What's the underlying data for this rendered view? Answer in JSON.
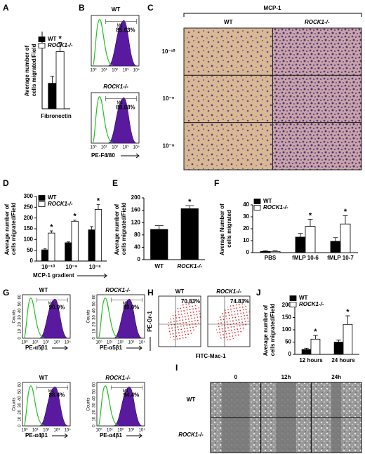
{
  "chart_data": [
    {
      "type": "bar",
      "ylabel": "Average number of cells migrated/Field",
      "categories": [
        "Fibronectin"
      ],
      "legend": true,
      "series": [
        {
          "name": "WT",
          "color": "#000000",
          "values": [
            33
          ],
          "errors": [
            9
          ],
          "annotations": [
            null
          ]
        },
        {
          "name": "ROCK1-/-",
          "color": "#ffffff",
          "values": [
            74
          ],
          "errors": [
            12
          ],
          "annotations": [
            "*"
          ]
        }
      ],
      "ylim": [
        0,
        100
      ]
    },
    {
      "type": "bar",
      "ylabel": "Average number of cells migrated/Field",
      "xlabel": "MCP-1 gradient",
      "categories": [
        "10⁻¹⁰",
        "10⁻⁹",
        "10⁻⁸"
      ],
      "legend": true,
      "series": [
        {
          "name": "WT",
          "color": "#000000",
          "values": [
            52,
            85,
            145
          ],
          "errors": [
            5,
            4,
            15
          ],
          "annotations": [
            null,
            null,
            null
          ]
        },
        {
          "name": "ROCK1-/-",
          "color": "#ffffff",
          "values": [
            130,
            185,
            240
          ],
          "errors": [
            10,
            5,
            22
          ],
          "annotations": [
            "*",
            "*",
            "*"
          ]
        }
      ],
      "ylim": [
        0,
        300
      ],
      "yticks": [
        0,
        50,
        100,
        150,
        200,
        250,
        300
      ]
    },
    {
      "type": "bar",
      "ylabel": "Average number of cells migrated/Field",
      "categories": [
        "WT",
        "ROCK1-/-"
      ],
      "legend": false,
      "series": [
        {
          "color": "#000000",
          "values": [
            98,
            165
          ],
          "errors": [
            12,
            10
          ],
          "annotations": [
            null,
            "*"
          ]
        }
      ],
      "ylim": [
        0,
        200
      ],
      "yticks": [
        0,
        40,
        80,
        120,
        160,
        200
      ]
    },
    {
      "type": "bar",
      "ylabel": "Average Number of cells migrated",
      "categories": [
        "PBS",
        "fMLP 10-6",
        "fMLP 10-7"
      ],
      "legend": true,
      "series": [
        {
          "name": "WT",
          "color": "#000000",
          "values": [
            1,
            13,
            9.5
          ],
          "errors": [
            0.5,
            3,
            3
          ],
          "annotations": [
            null,
            null,
            null
          ]
        },
        {
          "name": "ROCK1-/-",
          "color": "#ffffff",
          "values": [
            1,
            22,
            24
          ],
          "errors": [
            0.5,
            6,
            7
          ],
          "annotations": [
            null,
            "*",
            "*"
          ]
        }
      ],
      "ylim": [
        0,
        40
      ],
      "yticks": [
        0,
        10,
        20,
        30,
        40
      ]
    },
    {
      "type": "bar",
      "ylabel": "Average number of cells migrated/Field",
      "categories": [
        "12 hours",
        "24 hours"
      ],
      "legend": true,
      "series": [
        {
          "name": "WT",
          "color": "#000000",
          "values": [
            20,
            50
          ],
          "errors": [
            5,
            8
          ],
          "annotations": [
            null,
            null
          ]
        },
        {
          "name": "ROCK1-/-",
          "color": "#ffffff",
          "values": [
            62,
            122
          ],
          "errors": [
            15,
            35
          ],
          "annotations": [
            "*",
            "*"
          ]
        }
      ],
      "ylim": [
        0,
        200
      ],
      "yticks": [
        0,
        50,
        100,
        150,
        200
      ]
    }
  ],
  "panels": [
    "A",
    "B",
    "C",
    "D",
    "E",
    "F",
    "G",
    "H",
    "I",
    "J"
  ],
  "log_ticks": [
    "10⁰",
    "10¹",
    "10²",
    "10³",
    "10⁴"
  ],
  "flow_b": {
    "groups": [
      "WT",
      "ROCK1-/-"
    ],
    "percent": [
      "85.63%",
      "88.68%"
    ],
    "gate": "M1",
    "xlabel": "PE-F4/80"
  },
  "micro_c": {
    "header": "MCP-1",
    "columns": [
      "WT",
      "ROCK1-/-"
    ],
    "rows": [
      "10⁻¹⁰",
      "10⁻⁹",
      "10⁻⁸"
    ]
  },
  "flow_g": {
    "groups": [
      "WT",
      "ROCK1-/-"
    ],
    "percent": [
      "90.0%",
      "89.0%",
      "88.4%",
      "94.4%"
    ],
    "gate": "M1",
    "xlabels": [
      "PE-α5β1",
      "PE-α4β1"
    ],
    "ylabel": "Counts",
    "count_ticks": [
      0,
      10,
      20,
      30,
      40,
      50,
      60
    ]
  },
  "flow_h": {
    "groups": [
      "WT",
      "ROCK1-/-"
    ],
    "percent": [
      "70.83%",
      "74.83%"
    ],
    "ylabel": "PE-Gr-1",
    "xlabel": "FITC-Mac-1"
  },
  "micro_i": {
    "columns": [
      "0",
      "12h",
      "24h"
    ],
    "rows": [
      "WT",
      "ROCK1-/-"
    ]
  }
}
